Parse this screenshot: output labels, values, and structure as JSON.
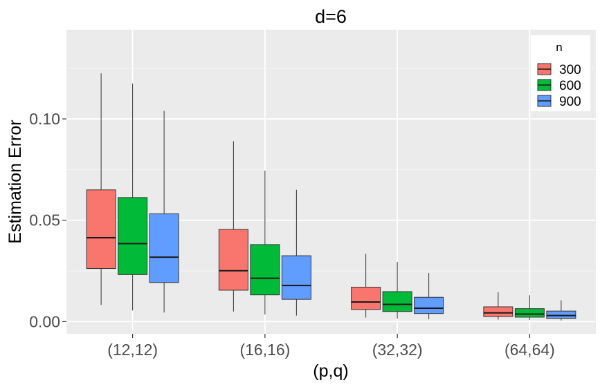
{
  "chart_data": {
    "type": "boxplot",
    "title": "d=6",
    "xlabel": "(p,q)",
    "ylabel": "Estimation Error",
    "categories": [
      "(12,12)",
      "(16,16)",
      "(32,32)",
      "(64,64)"
    ],
    "yticks": [
      0.0,
      0.05,
      0.1
    ],
    "ytick_labels": [
      "0.00",
      "0.05",
      "0.10"
    ],
    "ylim": [
      -0.006,
      0.144
    ],
    "grid": true,
    "legend": {
      "title": "n",
      "position": "top-right"
    },
    "series": [
      {
        "name": "300",
        "color": "#F8766D",
        "boxes": [
          {
            "min": 0.0083,
            "q1": 0.0262,
            "median": 0.0414,
            "q3": 0.065,
            "max": 0.1225
          },
          {
            "min": 0.005,
            "q1": 0.0155,
            "median": 0.0251,
            "q3": 0.0455,
            "max": 0.089
          },
          {
            "min": 0.002,
            "q1": 0.006,
            "median": 0.0097,
            "q3": 0.017,
            "max": 0.0335
          },
          {
            "min": 0.001,
            "q1": 0.0025,
            "median": 0.0043,
            "q3": 0.0073,
            "max": 0.0145
          }
        ]
      },
      {
        "name": "600",
        "color": "#00BA38",
        "boxes": [
          {
            "min": 0.0055,
            "q1": 0.0232,
            "median": 0.0385,
            "q3": 0.0612,
            "max": 0.1175
          },
          {
            "min": 0.0035,
            "q1": 0.0132,
            "median": 0.0214,
            "q3": 0.038,
            "max": 0.0745
          },
          {
            "min": 0.0015,
            "q1": 0.005,
            "median": 0.0085,
            "q3": 0.0148,
            "max": 0.0295
          },
          {
            "min": 0.0008,
            "q1": 0.0022,
            "median": 0.0037,
            "q3": 0.0064,
            "max": 0.013
          }
        ]
      },
      {
        "name": "900",
        "color": "#619CFF",
        "boxes": [
          {
            "min": 0.0045,
            "q1": 0.0193,
            "median": 0.0318,
            "q3": 0.0532,
            "max": 0.104
          },
          {
            "min": 0.003,
            "q1": 0.011,
            "median": 0.0178,
            "q3": 0.0325,
            "max": 0.065
          },
          {
            "min": 0.0012,
            "q1": 0.004,
            "median": 0.0066,
            "q3": 0.012,
            "max": 0.024
          },
          {
            "min": 0.0006,
            "q1": 0.0016,
            "median": 0.003,
            "q3": 0.0052,
            "max": 0.0105
          }
        ]
      }
    ]
  }
}
